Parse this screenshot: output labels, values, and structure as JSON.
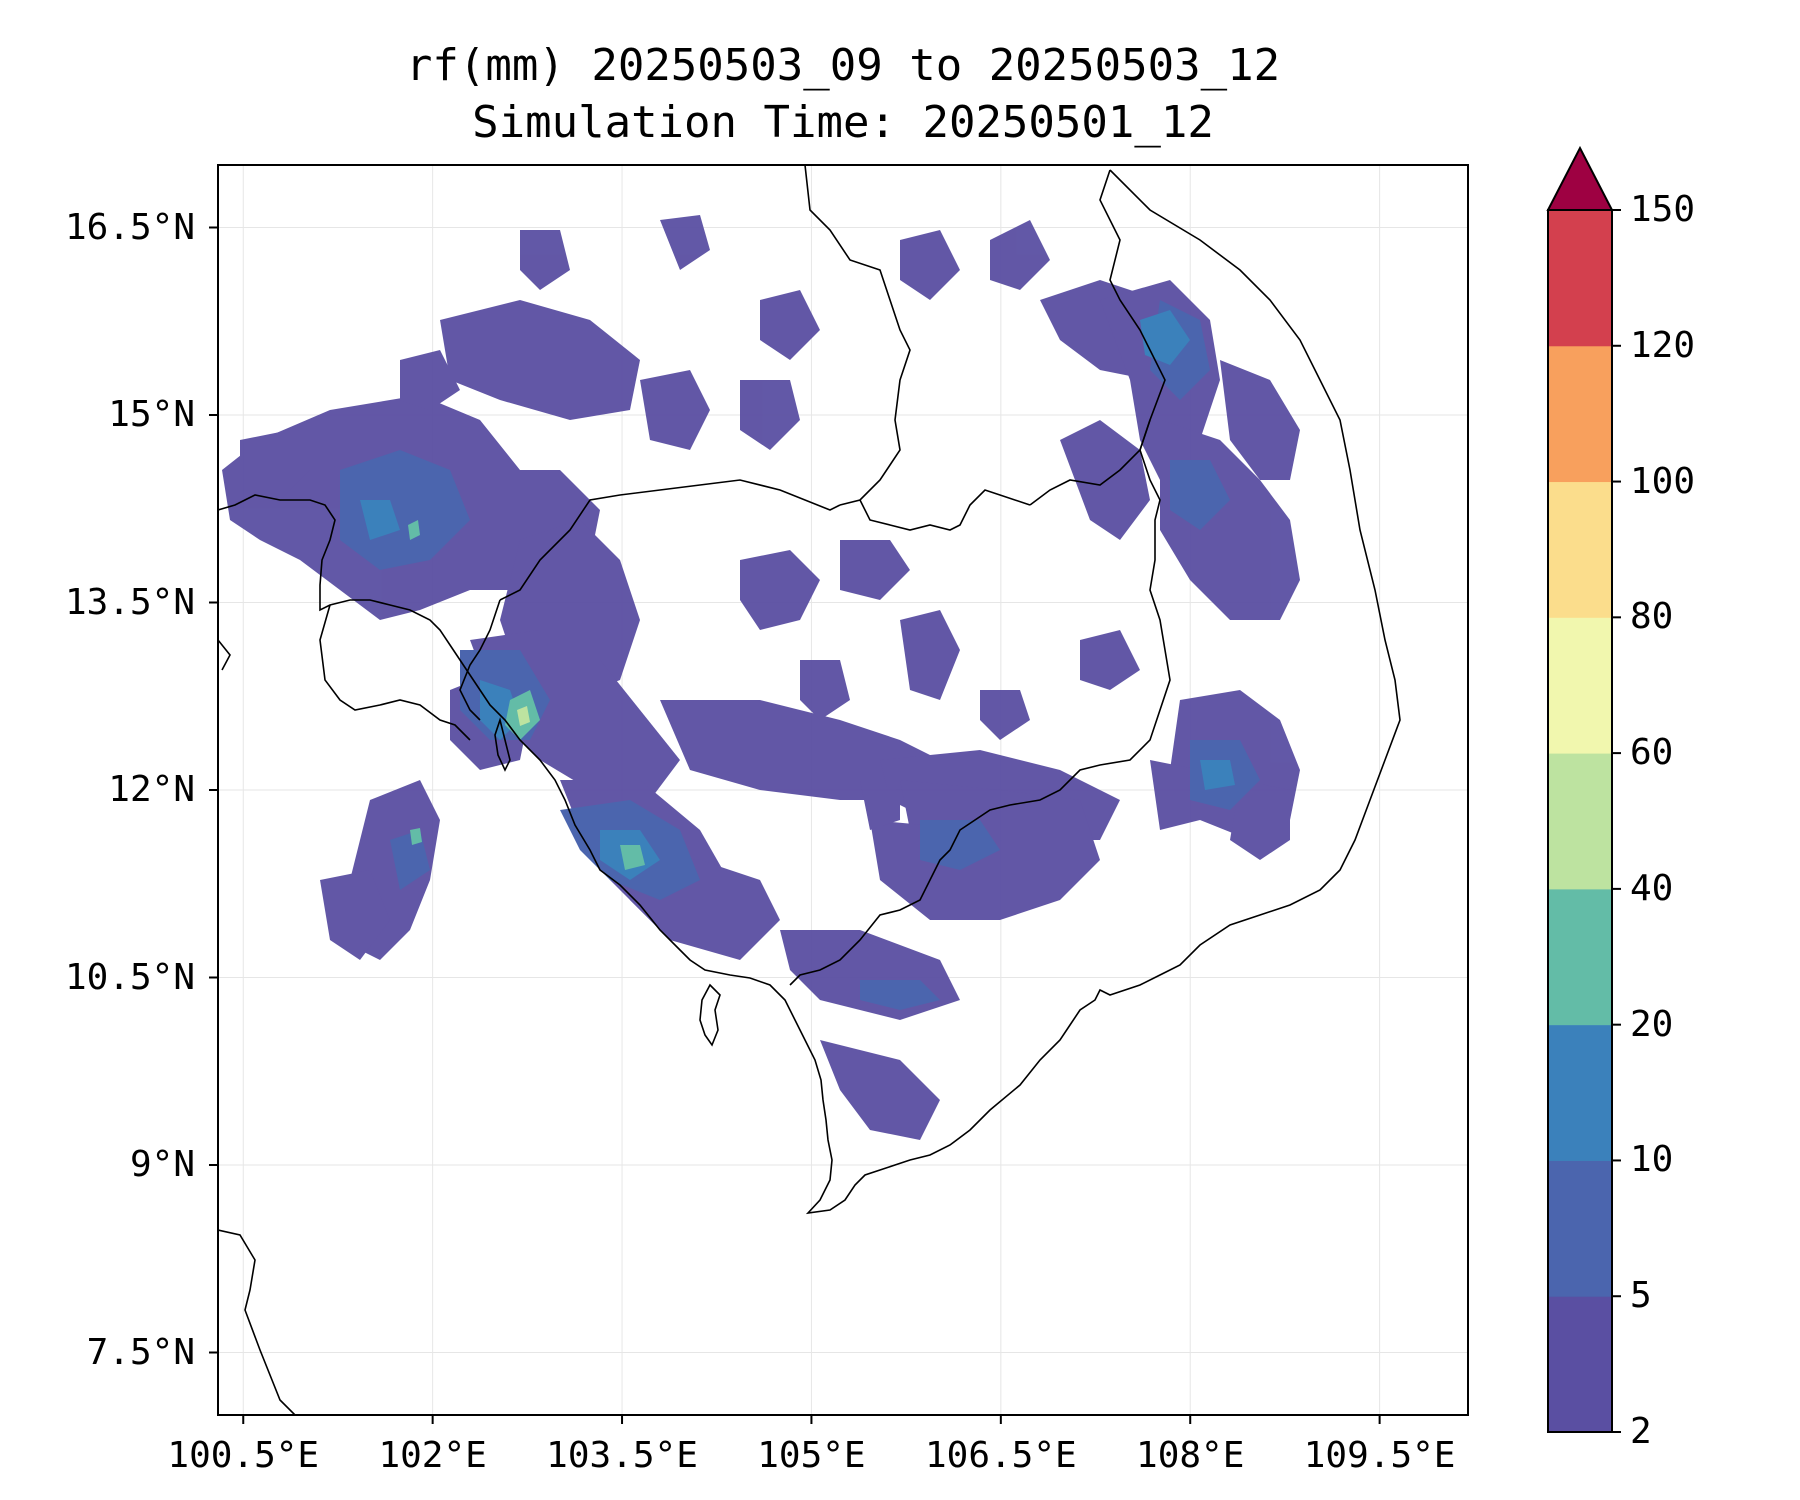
{
  "title": {
    "line1": "rf(mm) 20250503_09 to 20250503_12",
    "line2": "Simulation Time: 20250501_12"
  },
  "axes": {
    "lat_ticks": [
      "16.5°N",
      "15°N",
      "13.5°N",
      "12°N",
      "10.5°N",
      "9°N",
      "7.5°N"
    ],
    "lon_ticks": [
      "100.5°E",
      "102°E",
      "103.5°E",
      "105°E",
      "106.5°E",
      "108°E",
      "109.5°E"
    ]
  },
  "colorbar": {
    "levels": [
      "2",
      "5",
      "10",
      "20",
      "40",
      "60",
      "80",
      "100",
      "120",
      "150"
    ],
    "colors": [
      "#5a4fa2",
      "#4b65ae",
      "#3b81bb",
      "#63bca7",
      "#bde3a0",
      "#f1f7ae",
      "#fbdd8c",
      "#f8a05d",
      "#d3404e",
      "#9e0142"
    ],
    "extend": "max"
  },
  "map": {
    "lon_range": [
      100.3,
      110.2
    ],
    "lat_range": [
      7.0,
      17.0
    ],
    "grid": true,
    "coastline_color": "#000000",
    "border_color": "#000000"
  }
}
